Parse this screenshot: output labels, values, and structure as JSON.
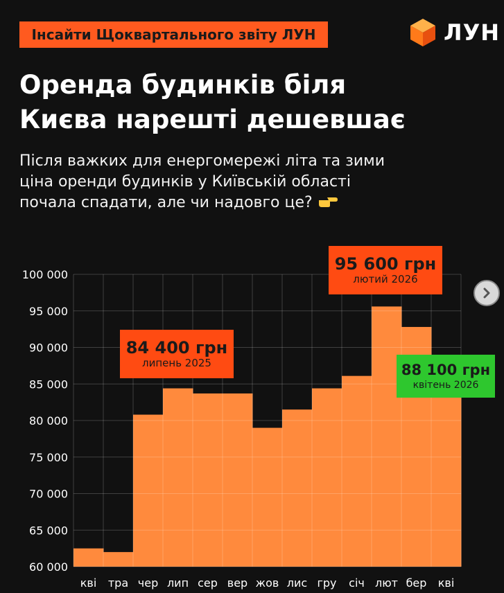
{
  "header": {
    "badge": "Інсайти Щоквартального звіту ЛУН",
    "logo_text": "ЛУН",
    "title_line1": "Оренда будинків біля",
    "title_line2": "Києва нарешті дешевшає",
    "subtitle_line1": "Після важких для енергомережі літа та зими",
    "subtitle_line2": "ціна оренди будинків у Київській області",
    "subtitle_line3": "почала спадати, але чи надовго це?"
  },
  "colors": {
    "background": "#111111",
    "bar": "#ff8a3d",
    "badge": "#ff5a1f",
    "callout": "#ff4b12",
    "callout_green": "#2ec72e",
    "grid": "#ffffff"
  },
  "icons": {
    "logo": "lun-cube-icon",
    "hand": "pointing-hand-icon",
    "next": "chevron-right-icon"
  },
  "chart_data": {
    "type": "area",
    "categories": [
      "кві",
      "тра",
      "чер",
      "лип",
      "сер",
      "вер",
      "жов",
      "лис",
      "гру",
      "січ",
      "лют",
      "бер",
      "кві"
    ],
    "values": [
      62500,
      62000,
      80800,
      84400,
      83700,
      83700,
      79000,
      81500,
      84400,
      86100,
      95600,
      92800,
      88100
    ],
    "ylim": [
      60000,
      100000
    ],
    "yticks": [
      60000,
      65000,
      70000,
      75000,
      80000,
      85000,
      90000,
      95000,
      100000
    ],
    "ytick_labels": [
      "60 000",
      "65 000",
      "70 000",
      "75 000",
      "80 000",
      "85 000",
      "90 000",
      "95 000",
      "100 000"
    ],
    "grid": true,
    "annotations": [
      {
        "value": "84 400 грн",
        "label": "липень 2025"
      },
      {
        "value": "95 600 грн",
        "label": "лютий 2026"
      },
      {
        "value": "88 100 грн",
        "label": "квітень 2026"
      }
    ]
  }
}
